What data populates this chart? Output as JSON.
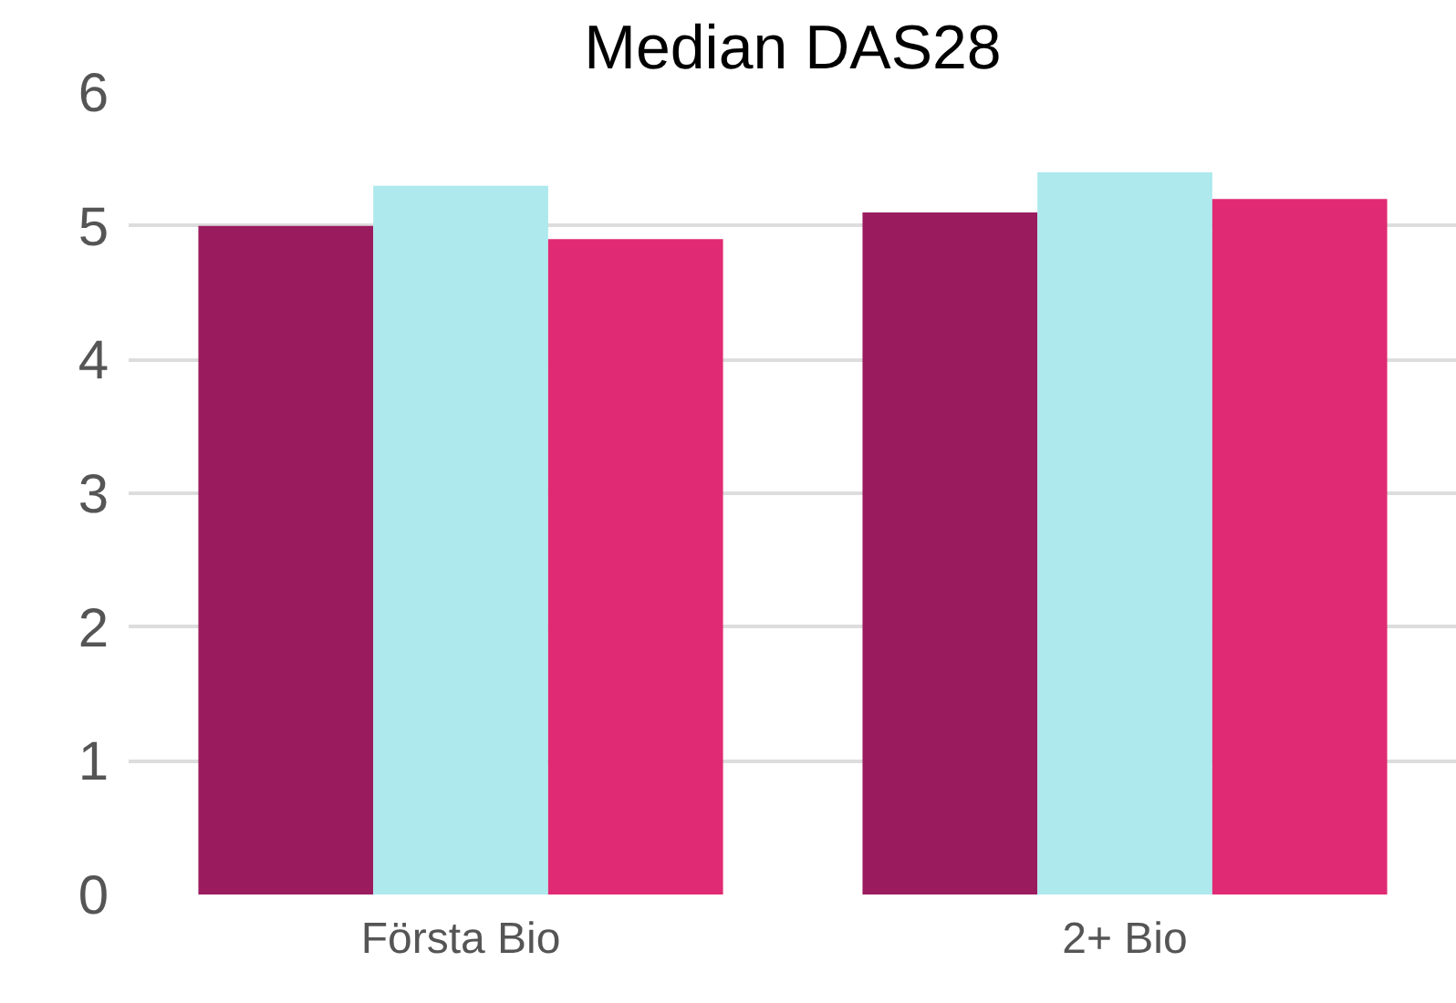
{
  "chart_data": {
    "type": "bar",
    "title": "Median DAS28",
    "categories": [
      "Första Bio",
      "2+ Bio"
    ],
    "series": [
      {
        "color": "#9b1b5f",
        "values": [
          5.0,
          5.1
        ]
      },
      {
        "color": "#ade9ed",
        "values": [
          5.3,
          5.4
        ]
      },
      {
        "color": "#e02a74",
        "values": [
          4.9,
          5.2
        ]
      }
    ],
    "ylim": [
      0,
      6
    ],
    "yticks": [
      0,
      1,
      2,
      3,
      4,
      5,
      6
    ],
    "grid": "y"
  }
}
